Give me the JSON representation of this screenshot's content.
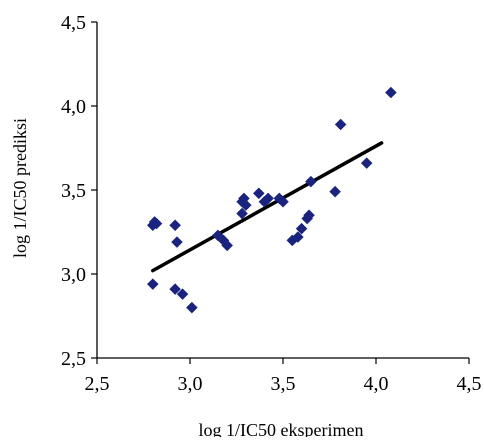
{
  "chart_data": {
    "type": "scatter",
    "xlabel": "log 1/IC50 eksperimen",
    "ylabel": "log 1/IC50 prediksi",
    "xlim": [
      2.5,
      4.5
    ],
    "ylim": [
      2.5,
      4.5
    ],
    "x_ticks": [
      "2,5",
      "3,0",
      "3,5",
      "4,0",
      "4,5"
    ],
    "y_ticks": [
      "2,5",
      "3,0",
      "3,5",
      "4,0",
      "4,5"
    ],
    "grid": false,
    "legend": "none",
    "marker": "diamond",
    "marker_color": "#1a237e",
    "line_color": "#000000",
    "points": [
      {
        "x": 2.8,
        "y": 3.29
      },
      {
        "x": 2.81,
        "y": 3.31
      },
      {
        "x": 2.82,
        "y": 3.3
      },
      {
        "x": 2.8,
        "y": 2.94
      },
      {
        "x": 2.92,
        "y": 3.29
      },
      {
        "x": 2.93,
        "y": 3.19
      },
      {
        "x": 2.92,
        "y": 2.91
      },
      {
        "x": 2.96,
        "y": 2.88
      },
      {
        "x": 3.01,
        "y": 2.8
      },
      {
        "x": 3.15,
        "y": 3.23
      },
      {
        "x": 3.18,
        "y": 3.2
      },
      {
        "x": 3.2,
        "y": 3.17
      },
      {
        "x": 3.28,
        "y": 3.36
      },
      {
        "x": 3.28,
        "y": 3.43
      },
      {
        "x": 3.29,
        "y": 3.45
      },
      {
        "x": 3.3,
        "y": 3.41
      },
      {
        "x": 3.37,
        "y": 3.48
      },
      {
        "x": 3.4,
        "y": 3.43
      },
      {
        "x": 3.42,
        "y": 3.45
      },
      {
        "x": 3.48,
        "y": 3.45
      },
      {
        "x": 3.5,
        "y": 3.43
      },
      {
        "x": 3.55,
        "y": 3.2
      },
      {
        "x": 3.58,
        "y": 3.22
      },
      {
        "x": 3.6,
        "y": 3.27
      },
      {
        "x": 3.63,
        "y": 3.33
      },
      {
        "x": 3.64,
        "y": 3.35
      },
      {
        "x": 3.65,
        "y": 3.55
      },
      {
        "x": 3.78,
        "y": 3.49
      },
      {
        "x": 3.81,
        "y": 3.89
      },
      {
        "x": 3.95,
        "y": 3.66
      },
      {
        "x": 4.08,
        "y": 4.08
      }
    ],
    "trendline": {
      "x": [
        2.8,
        4.03
      ],
      "y": [
        3.02,
        3.78
      ]
    }
  }
}
